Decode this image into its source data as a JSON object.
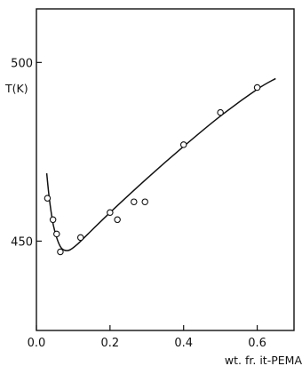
{
  "chart_data": {
    "type": "scatter",
    "xlabel": "wt. fr. it-PEMA",
    "ylabel": "T(K)",
    "xlim": [
      0.0,
      0.7
    ],
    "ylim": [
      425,
      515
    ],
    "grid": false,
    "x_ticks": [
      {
        "value": 0.0,
        "label": "0.0"
      },
      {
        "value": 0.2,
        "label": "0.2"
      },
      {
        "value": 0.4,
        "label": "0.4"
      },
      {
        "value": 0.6,
        "label": "0.6"
      }
    ],
    "y_ticks": [
      {
        "value": 500,
        "label": "500"
      },
      {
        "value": 450,
        "label": "450"
      }
    ],
    "series": [
      {
        "mark": "open-circle",
        "x": [
          0.03,
          0.045,
          0.055,
          0.065,
          0.12,
          0.2,
          0.22,
          0.265,
          0.295,
          0.4,
          0.5,
          0.6
        ],
        "y": [
          462,
          456,
          452,
          447,
          451,
          458,
          456,
          461,
          461,
          477,
          486,
          493
        ]
      },
      {
        "mark": "fitted-curve",
        "x": [
          0.028,
          0.035,
          0.045,
          0.055,
          0.065,
          0.075,
          0.09,
          0.11,
          0.14,
          0.2,
          0.3,
          0.4,
          0.5,
          0.6,
          0.65
        ],
        "y": [
          469,
          462,
          455,
          451,
          448.5,
          447.5,
          447.5,
          449,
          452,
          458,
          467.5,
          476.5,
          485,
          492.5,
          495.5
        ]
      }
    ]
  }
}
